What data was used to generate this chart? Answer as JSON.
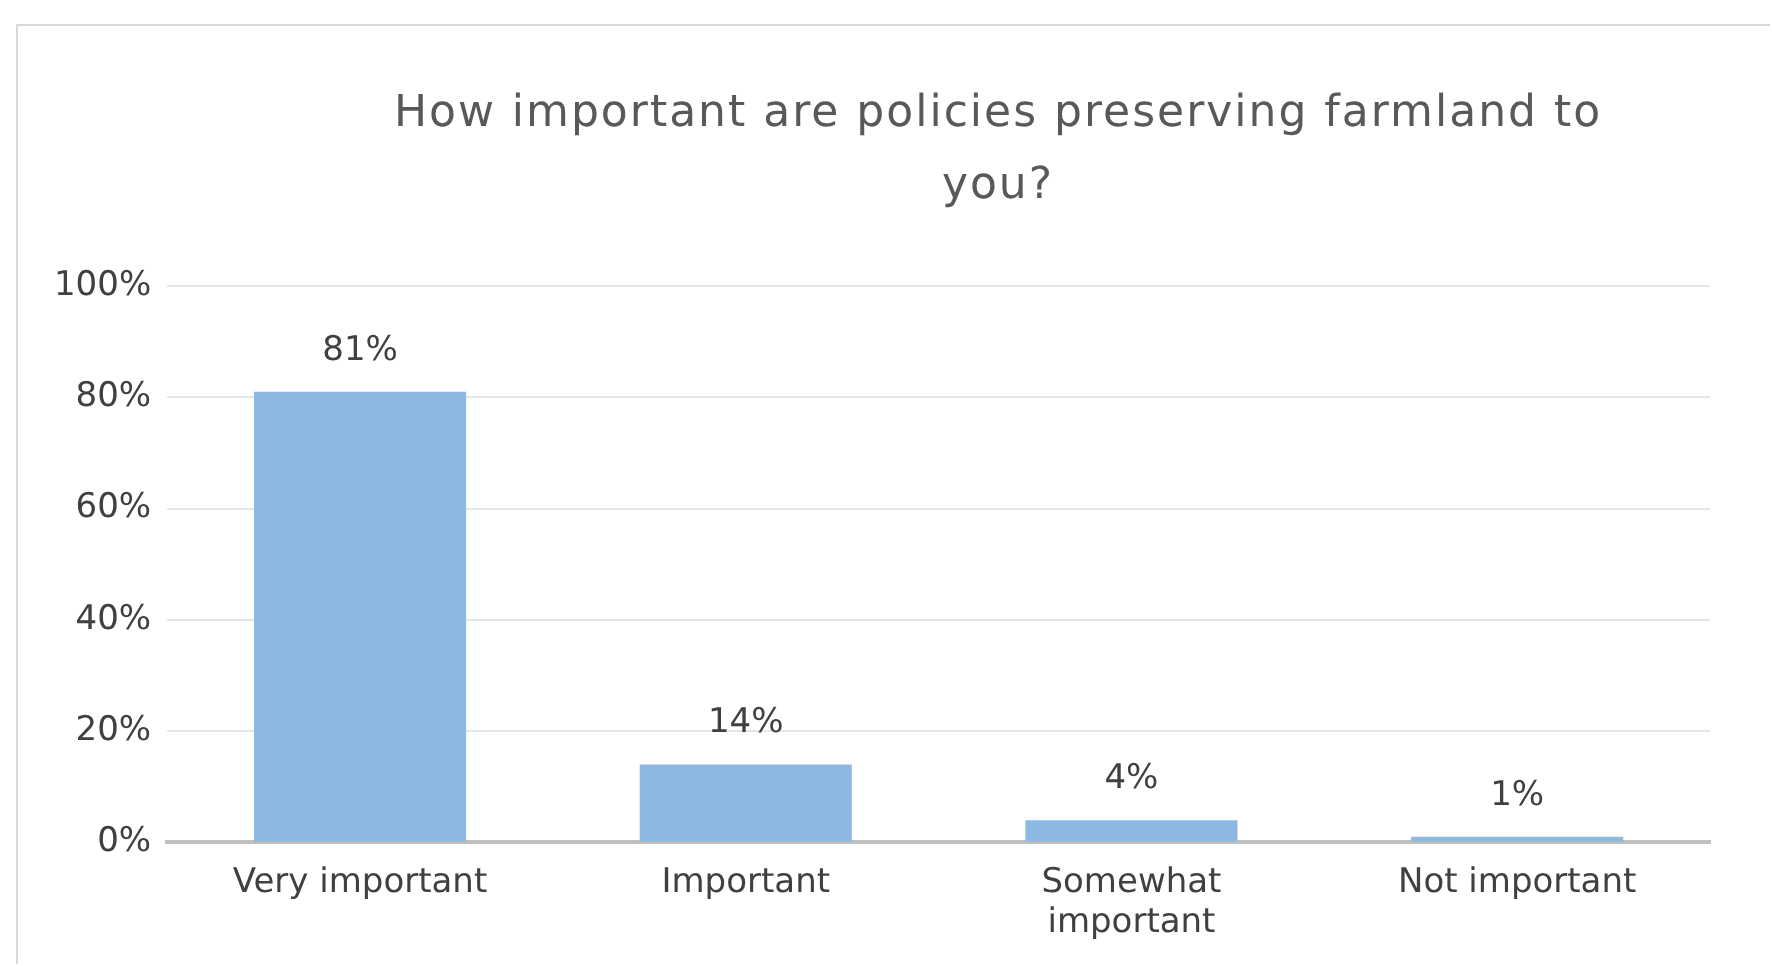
{
  "chart_data": {
    "type": "bar",
    "title": "How important are policies preserving farmland to you?",
    "categories": [
      "Very important",
      "Important",
      "Somewhat important",
      "Not important"
    ],
    "values": [
      81,
      14,
      4,
      1
    ],
    "color": "#8db8e2",
    "value_labels": [
      "81%",
      "14%",
      "4%",
      "1%"
    ],
    "ylim": [
      0,
      100
    ],
    "yticks": [
      {
        "value": 0,
        "label": "0%"
      },
      {
        "value": 20,
        "label": "20%"
      },
      {
        "value": 40,
        "label": "40%"
      },
      {
        "value": 60,
        "label": "60%"
      },
      {
        "value": 80,
        "label": "80%"
      },
      {
        "value": 100,
        "label": "100%"
      }
    ],
    "grid": "y",
    "legend": false
  }
}
